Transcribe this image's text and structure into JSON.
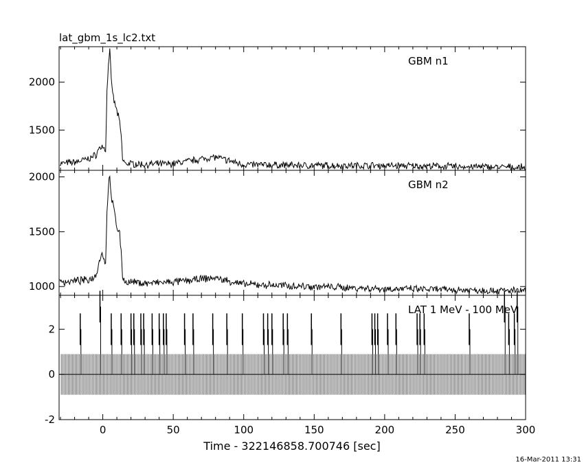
{
  "title": "lat_gbm_1s_lc2.txt",
  "footer_stamp": "16-Mar-2011 13:31",
  "chart_data": [
    {
      "type": "line",
      "panel_label": "GBM n1",
      "ylim": [
        1080,
        2370
      ],
      "yticks": [
        1500,
        2000
      ],
      "xlim": [
        -31,
        300
      ],
      "series": [
        {
          "x": [
            -30,
            -20,
            -10,
            -5,
            -2,
            0,
            2,
            3,
            4,
            5,
            6,
            8,
            10,
            12,
            13,
            14,
            16,
            20,
            30,
            50,
            79,
            100,
            150,
            200,
            250,
            300
          ],
          "values": [
            1150,
            1165,
            1200,
            1240,
            1320,
            1330,
            1290,
            1900,
            2200,
            2340,
            2000,
            1800,
            1700,
            1580,
            1450,
            1200,
            1150,
            1150,
            1140,
            1150,
            1220,
            1140,
            1130,
            1130,
            1120,
            1110
          ]
        }
      ]
    },
    {
      "type": "line",
      "panel_label": "GBM n2",
      "ylim": [
        920,
        2060
      ],
      "yticks": [
        1000,
        1500,
        2000
      ],
      "xlim": [
        -31,
        300
      ],
      "series": [
        {
          "x": [
            -30,
            -20,
            -10,
            -5,
            -2,
            0,
            2,
            3,
            4,
            5,
            6,
            8,
            10,
            12,
            13,
            14,
            16,
            20,
            30,
            50,
            79,
            100,
            150,
            200,
            250,
            300
          ],
          "values": [
            1040,
            1050,
            1060,
            1100,
            1260,
            1300,
            1200,
            1700,
            1900,
            2040,
            1800,
            1700,
            1540,
            1500,
            1300,
            1100,
            1040,
            1040,
            1030,
            1040,
            1080,
            1020,
            1000,
            980,
            970,
            960
          ]
        }
      ]
    },
    {
      "type": "bar",
      "panel_label": "LAT 1 MeV - 100 MeV",
      "ylim": [
        -2,
        3.5
      ],
      "yticks": [
        -2,
        0,
        2
      ],
      "xlim": [
        -31,
        300
      ],
      "xticks": [
        0,
        50,
        100,
        150,
        200,
        250,
        300
      ],
      "xlabel": "Time - 322146858.700746 [sec]",
      "events": [
        {
          "x": -16,
          "v": 2
        },
        {
          "x": -2,
          "v": 3
        },
        {
          "x": 6,
          "v": 2
        },
        {
          "x": 13,
          "v": 2
        },
        {
          "x": 20,
          "v": 2
        },
        {
          "x": 22,
          "v": 2
        },
        {
          "x": 27,
          "v": 2
        },
        {
          "x": 29,
          "v": 2
        },
        {
          "x": 35,
          "v": 2
        },
        {
          "x": 40,
          "v": 2
        },
        {
          "x": 43,
          "v": 2
        },
        {
          "x": 45,
          "v": 2
        },
        {
          "x": 58,
          "v": 2
        },
        {
          "x": 64,
          "v": 2
        },
        {
          "x": 78,
          "v": 2
        },
        {
          "x": 88,
          "v": 2
        },
        {
          "x": 99,
          "v": 2
        },
        {
          "x": 114,
          "v": 2
        },
        {
          "x": 117,
          "v": 2
        },
        {
          "x": 120,
          "v": 2
        },
        {
          "x": 128,
          "v": 2
        },
        {
          "x": 131,
          "v": 2
        },
        {
          "x": 148,
          "v": 2
        },
        {
          "x": 169,
          "v": 2
        },
        {
          "x": 191,
          "v": 2
        },
        {
          "x": 193,
          "v": 2
        },
        {
          "x": 195,
          "v": 2
        },
        {
          "x": 202,
          "v": 2
        },
        {
          "x": 208,
          "v": 2
        },
        {
          "x": 223,
          "v": 2
        },
        {
          "x": 225,
          "v": 2
        },
        {
          "x": 228,
          "v": 2
        },
        {
          "x": 260,
          "v": 2
        },
        {
          "x": 285,
          "v": 3
        },
        {
          "x": 288,
          "v": 2
        },
        {
          "x": 292,
          "v": 2
        },
        {
          "x": 294,
          "v": 3
        }
      ]
    }
  ]
}
